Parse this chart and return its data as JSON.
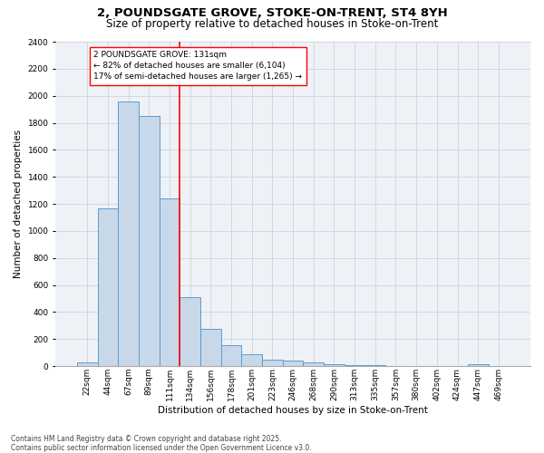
{
  "title_line1": "2, POUNDSGATE GROVE, STOKE-ON-TRENT, ST4 8YH",
  "title_line2": "Size of property relative to detached houses in Stoke-on-Trent",
  "xlabel": "Distribution of detached houses by size in Stoke-on-Trent",
  "ylabel": "Number of detached properties",
  "categories": [
    "22sqm",
    "44sqm",
    "67sqm",
    "89sqm",
    "111sqm",
    "134sqm",
    "156sqm",
    "178sqm",
    "201sqm",
    "223sqm",
    "246sqm",
    "268sqm",
    "290sqm",
    "313sqm",
    "335sqm",
    "357sqm",
    "380sqm",
    "402sqm",
    "424sqm",
    "447sqm",
    "469sqm"
  ],
  "values": [
    28,
    1170,
    1960,
    1850,
    1240,
    510,
    275,
    155,
    90,
    48,
    40,
    28,
    15,
    10,
    5,
    3,
    2,
    1,
    0,
    12,
    0
  ],
  "bar_color": "#c8d8e8",
  "bar_edge_color": "#5b9bd5",
  "subject_line_color": "red",
  "annotation_text": "2 POUNDSGATE GROVE: 131sqm\n← 82% of detached houses are smaller (6,104)\n17% of semi-detached houses are larger (1,265) →",
  "annotation_box_color": "white",
  "annotation_box_edge_color": "red",
  "ylim": [
    0,
    2400
  ],
  "yticks": [
    0,
    200,
    400,
    600,
    800,
    1000,
    1200,
    1400,
    1600,
    1800,
    2000,
    2200,
    2400
  ],
  "grid_color": "#d0d8e0",
  "background_color": "#eef2f7",
  "footer_line1": "Contains HM Land Registry data © Crown copyright and database right 2025.",
  "footer_line2": "Contains public sector information licensed under the Open Government Licence v3.0.",
  "title_fontsize": 9.5,
  "subtitle_fontsize": 8.5,
  "axis_label_fontsize": 7.5,
  "tick_fontsize": 6.5,
  "annotation_fontsize": 6.5,
  "footer_fontsize": 5.5
}
